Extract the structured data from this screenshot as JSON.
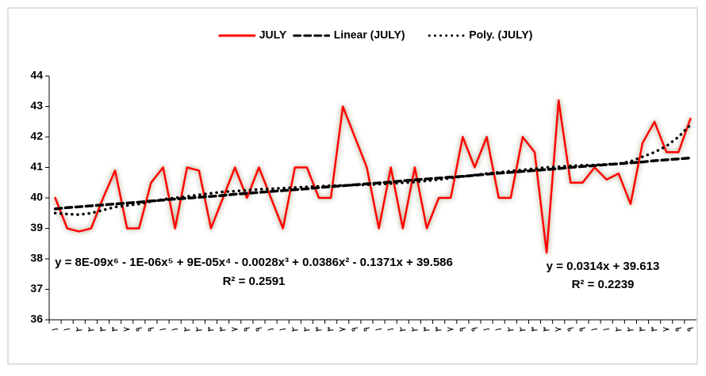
{
  "chart_data": {
    "type": "line",
    "categories": [
      "١",
      "١",
      "٢",
      "٢",
      "٣",
      "٣",
      "٧",
      "٩",
      "٩",
      "١",
      "١",
      "٢",
      "٢",
      "٣",
      "٣",
      "٧",
      "٩",
      "٩",
      "١",
      "١",
      "٢",
      "٢",
      "٣",
      "٣",
      "٧",
      "٩",
      "٩",
      "١",
      "١",
      "٢",
      "٢",
      "٣",
      "٣",
      "٧",
      "٩",
      "٩",
      "١",
      "١",
      "٢",
      "٢",
      "٣",
      "٣",
      "٧",
      "٩",
      "٩",
      "١",
      "١",
      "٢",
      "٢",
      "٣",
      "٣",
      "٧",
      "٩",
      "٩"
    ],
    "series": [
      {
        "name": "JULY",
        "color": "#ff0000",
        "style": "solid",
        "glow": true,
        "values": [
          40.0,
          39.0,
          38.9,
          39.0,
          40.0,
          40.9,
          39.0,
          39.0,
          40.5,
          41.0,
          39.0,
          41.0,
          40.9,
          39.0,
          40.0,
          41.0,
          40.0,
          41.0,
          40.0,
          39.0,
          41.0,
          41.0,
          40.0,
          40.0,
          43.0,
          42.0,
          41.0,
          39.0,
          41.0,
          39.0,
          41.0,
          39.0,
          40.0,
          40.0,
          42.0,
          41.0,
          42.0,
          40.0,
          40.0,
          42.0,
          41.5,
          38.2,
          43.2,
          40.5,
          40.5,
          41.0,
          40.6,
          40.8,
          39.8,
          41.8,
          42.5,
          41.5,
          41.5,
          42.6
        ]
      },
      {
        "name": "Linear (JULY)",
        "color": "#000000",
        "style": "dashed",
        "glow": false,
        "values": [
          39.64,
          39.68,
          39.71,
          39.74,
          39.77,
          39.8,
          39.83,
          39.86,
          39.9,
          39.93,
          39.96,
          39.99,
          40.02,
          40.05,
          40.08,
          40.12,
          40.15,
          40.18,
          40.21,
          40.24,
          40.27,
          40.3,
          40.34,
          40.37,
          40.4,
          40.43,
          40.46,
          40.49,
          40.52,
          40.56,
          40.59,
          40.62,
          40.65,
          40.68,
          40.71,
          40.74,
          40.78,
          40.81,
          40.84,
          40.87,
          40.9,
          40.93,
          40.96,
          41.0,
          41.03,
          41.06,
          41.09,
          41.12,
          41.15,
          41.18,
          41.22,
          41.25,
          41.28,
          41.31
        ]
      },
      {
        "name": "Poly. (JULY)",
        "color": "#000000",
        "style": "dotted",
        "glow": false,
        "values": [
          39.5,
          39.47,
          39.45,
          39.5,
          39.6,
          39.7,
          39.75,
          39.8,
          39.88,
          39.95,
          40.0,
          40.05,
          40.1,
          40.15,
          40.2,
          40.22,
          40.25,
          40.28,
          40.3,
          40.32,
          40.34,
          40.36,
          40.38,
          40.4,
          40.41,
          40.42,
          40.43,
          40.45,
          40.47,
          40.5,
          40.52,
          40.56,
          40.6,
          40.65,
          40.7,
          40.75,
          40.8,
          40.84,
          40.88,
          40.92,
          40.96,
          41.0,
          41.02,
          41.05,
          41.07,
          41.08,
          41.1,
          41.12,
          41.2,
          41.35,
          41.5,
          41.7,
          42.0,
          42.4
        ]
      }
    ],
    "ylim": [
      36,
      44
    ],
    "yticks": [
      36,
      37,
      38,
      39,
      40,
      41,
      42,
      43,
      44
    ],
    "grid": false,
    "legend": "top",
    "annotations": [
      "y = 8E-09x⁶ - 1E-06x⁵ + 9E-05x⁴ - 0.0028x³ + 0.0386x² - 0.1371x + 39.586",
      "R² = 0.2591",
      "y = 0.0314x + 39.613",
      "R² = 0.2239"
    ]
  }
}
